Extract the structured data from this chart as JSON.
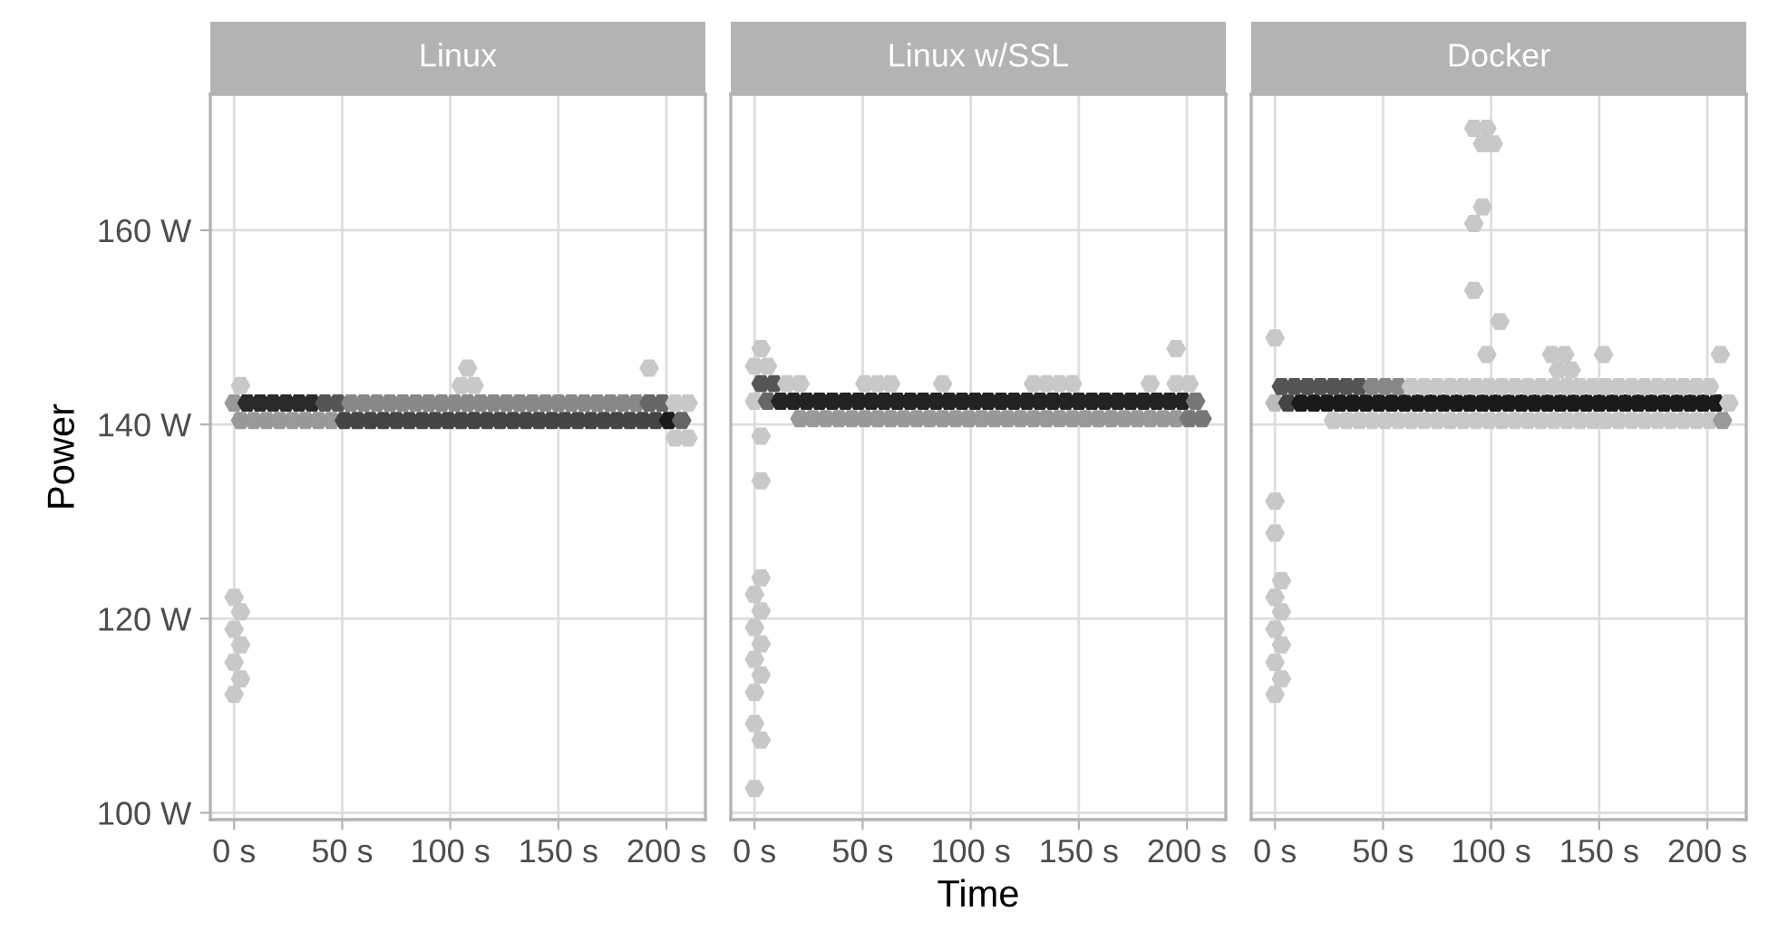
{
  "chart_data": [
    {
      "type": "scatter",
      "title": "Linux",
      "ylabel": "Power",
      "xlim": [
        -11,
        218
      ],
      "ylim": [
        99.3,
        174
      ],
      "grid": true,
      "xticks": [
        {
          "value": 0,
          "label": "0 s"
        },
        {
          "value": 50,
          "label": "50 s"
        },
        {
          "value": 100,
          "label": "100 s"
        },
        {
          "value": 150,
          "label": "150 s"
        },
        {
          "value": 200,
          "label": "200 s"
        }
      ],
      "yticks": [
        {
          "value": 100,
          "label": "100 W"
        },
        {
          "value": 120,
          "label": "120 W"
        },
        {
          "value": 140,
          "label": "140 W"
        },
        {
          "value": 160,
          "label": "160 W"
        }
      ],
      "series": [
        {
          "x": [
            0,
            6,
            12,
            18,
            24,
            30,
            36,
            42,
            48,
            54,
            60,
            66,
            72,
            78,
            84,
            90,
            96,
            102,
            108,
            114,
            120,
            126,
            132,
            138,
            144,
            150,
            156,
            162,
            168,
            174,
            180,
            186,
            192,
            198,
            204,
            210
          ],
          "values": [
            142.2,
            142.2,
            142.2,
            142.2,
            142.2,
            142.2,
            142.2,
            142.2,
            142.2,
            142.2,
            142.2,
            142.2,
            142.2,
            142.2,
            142.2,
            142.2,
            142.2,
            142.2,
            142.2,
            142.2,
            142.2,
            142.2,
            142.2,
            142.2,
            142.2,
            142.2,
            142.2,
            142.2,
            142.2,
            142.2,
            142.2,
            142.2,
            142.2,
            142.2,
            142.2,
            142.2
          ],
          "colors": [
            "#999999",
            "#2a2a2a",
            "#2a2a2a",
            "#2a2a2a",
            "#2a2a2a",
            "#2a2a2a",
            "#2a2a2a",
            "#555555",
            "#555555",
            "#888888",
            "#888888",
            "#888888",
            "#888888",
            "#888888",
            "#888888",
            "#888888",
            "#888888",
            "#888888",
            "#888888",
            "#888888",
            "#888888",
            "#888888",
            "#888888",
            "#888888",
            "#888888",
            "#888888",
            "#888888",
            "#888888",
            "#888888",
            "#888888",
            "#888888",
            "#888888",
            "#666666",
            "#666666",
            "#c8c8c8",
            "#c8c8c8"
          ]
        },
        {
          "x": [
            3,
            9,
            15,
            21,
            27,
            33,
            39,
            45,
            51,
            57,
            63,
            69,
            75,
            81,
            87,
            93,
            99,
            105,
            111,
            117,
            123,
            129,
            135,
            141,
            147,
            153,
            159,
            165,
            171,
            177,
            183,
            189,
            195,
            201,
            207
          ],
          "values": [
            140.4,
            140.4,
            140.4,
            140.4,
            140.4,
            140.4,
            140.4,
            140.4,
            140.4,
            140.4,
            140.4,
            140.4,
            140.4,
            140.4,
            140.4,
            140.4,
            140.4,
            140.4,
            140.4,
            140.4,
            140.4,
            140.4,
            140.4,
            140.4,
            140.4,
            140.4,
            140.4,
            140.4,
            140.4,
            140.4,
            140.4,
            140.4,
            140.4,
            140.4,
            140.4
          ],
          "colors": [
            "#999999",
            "#999999",
            "#999999",
            "#999999",
            "#999999",
            "#999999",
            "#999999",
            "#999999",
            "#444444",
            "#444444",
            "#444444",
            "#444444",
            "#444444",
            "#444444",
            "#444444",
            "#444444",
            "#444444",
            "#444444",
            "#444444",
            "#444444",
            "#444444",
            "#444444",
            "#444444",
            "#444444",
            "#444444",
            "#444444",
            "#444444",
            "#444444",
            "#444444",
            "#444444",
            "#444444",
            "#444444",
            "#444444",
            "#1a1a1a",
            "#666666"
          ]
        },
        {
          "x": [
            204,
            210,
            3,
            105,
            111,
            108,
            192,
            0,
            3,
            0,
            3,
            0,
            3,
            0
          ],
          "values": [
            138.6,
            138.6,
            144.0,
            144.0,
            144.0,
            145.8,
            145.8,
            122.2,
            120.7,
            118.9,
            117.3,
            115.5,
            113.8,
            112.2
          ],
          "colors": [
            "#c8c8c8",
            "#c8c8c8",
            "#c8c8c8",
            "#c8c8c8",
            "#c8c8c8",
            "#c8c8c8",
            "#c8c8c8",
            "#c8c8c8",
            "#c8c8c8",
            "#c8c8c8",
            "#c8c8c8",
            "#c8c8c8",
            "#c8c8c8",
            "#c8c8c8"
          ]
        }
      ]
    },
    {
      "type": "scatter",
      "title": "Linux w/SSL",
      "xlabel": "Time",
      "xlim": [
        -11,
        218
      ],
      "ylim": [
        99.3,
        174
      ],
      "grid": true,
      "tick_labels": "x",
      "xticks": [
        {
          "value": 0,
          "label": "0 s"
        },
        {
          "value": 50,
          "label": "50 s"
        },
        {
          "value": 100,
          "label": "100 s"
        },
        {
          "value": 150,
          "label": "150 s"
        },
        {
          "value": 200,
          "label": "200 s"
        }
      ],
      "yticks": [
        {
          "value": 100,
          "label": null
        },
        {
          "value": 120,
          "label": null
        },
        {
          "value": 140,
          "label": null
        },
        {
          "value": 160,
          "label": null
        }
      ],
      "series": [
        {
          "x": [
            0,
            6,
            12,
            18,
            24,
            30,
            36,
            42,
            48,
            54,
            60,
            66,
            72,
            78,
            84,
            90,
            96,
            102,
            108,
            114,
            120,
            126,
            132,
            138,
            144,
            150,
            156,
            162,
            168,
            174,
            180,
            186,
            192,
            198,
            204
          ],
          "values": [
            142.4,
            142.4,
            142.4,
            142.4,
            142.4,
            142.4,
            142.4,
            142.4,
            142.4,
            142.4,
            142.4,
            142.4,
            142.4,
            142.4,
            142.4,
            142.4,
            142.4,
            142.4,
            142.4,
            142.4,
            142.4,
            142.4,
            142.4,
            142.4,
            142.4,
            142.4,
            142.4,
            142.4,
            142.4,
            142.4,
            142.4,
            142.4,
            142.4,
            142.4,
            142.4
          ],
          "colors": [
            "#c8c8c8",
            "#666666",
            "#222222",
            "#222222",
            "#222222",
            "#222222",
            "#222222",
            "#222222",
            "#222222",
            "#222222",
            "#222222",
            "#222222",
            "#222222",
            "#222222",
            "#222222",
            "#222222",
            "#222222",
            "#222222",
            "#222222",
            "#222222",
            "#222222",
            "#222222",
            "#222222",
            "#222222",
            "#222222",
            "#222222",
            "#222222",
            "#222222",
            "#222222",
            "#222222",
            "#222222",
            "#222222",
            "#222222",
            "#222222",
            "#777777"
          ]
        },
        {
          "x": [
            21,
            27,
            33,
            39,
            45,
            51,
            57,
            63,
            69,
            75,
            81,
            87,
            93,
            99,
            105,
            111,
            117,
            123,
            129,
            135,
            141,
            147,
            153,
            159,
            165,
            171,
            177,
            183,
            189,
            195,
            201,
            207
          ],
          "values": [
            140.6,
            140.6,
            140.6,
            140.6,
            140.6,
            140.6,
            140.6,
            140.6,
            140.6,
            140.6,
            140.6,
            140.6,
            140.6,
            140.6,
            140.6,
            140.6,
            140.6,
            140.6,
            140.6,
            140.6,
            140.6,
            140.6,
            140.6,
            140.6,
            140.6,
            140.6,
            140.6,
            140.6,
            140.6,
            140.6,
            140.6,
            140.6
          ],
          "colors": [
            "#999999",
            "#999999",
            "#999999",
            "#999999",
            "#999999",
            "#999999",
            "#999999",
            "#999999",
            "#999999",
            "#999999",
            "#999999",
            "#999999",
            "#999999",
            "#999999",
            "#999999",
            "#999999",
            "#999999",
            "#999999",
            "#999999",
            "#999999",
            "#999999",
            "#999999",
            "#999999",
            "#999999",
            "#999999",
            "#999999",
            "#999999",
            "#999999",
            "#999999",
            "#999999",
            "#777777",
            "#777777"
          ]
        },
        {
          "x": [
            3,
            9,
            15,
            21,
            51,
            57,
            63,
            87,
            129,
            135,
            141,
            147,
            183,
            195,
            201
          ],
          "values": [
            144.2,
            144.2,
            144.2,
            144.2,
            144.2,
            144.2,
            144.2,
            144.2,
            144.2,
            144.2,
            144.2,
            144.2,
            144.2,
            144.2,
            144.2
          ],
          "colors": [
            "#555555",
            "#555555",
            "#c8c8c8",
            "#c8c8c8",
            "#c8c8c8",
            "#c8c8c8",
            "#c8c8c8",
            "#c8c8c8",
            "#c8c8c8",
            "#c8c8c8",
            "#c8c8c8",
            "#c8c8c8",
            "#c8c8c8",
            "#c8c8c8",
            "#c8c8c8"
          ]
        },
        {
          "x": [
            3,
            0,
            6,
            3,
            195,
            3,
            3,
            0,
            3,
            0,
            3,
            0,
            3,
            0,
            0,
            3,
            0
          ],
          "values": [
            138.8,
            146.0,
            146.0,
            147.8,
            147.8,
            134.2,
            124.2,
            122.5,
            120.8,
            119.1,
            117.4,
            115.8,
            114.2,
            112.4,
            109.2,
            107.5,
            102.5
          ],
          "colors": [
            "#c8c8c8",
            "#c8c8c8",
            "#c8c8c8",
            "#c8c8c8",
            "#c8c8c8",
            "#c8c8c8",
            "#c8c8c8",
            "#c8c8c8",
            "#c8c8c8",
            "#c8c8c8",
            "#c8c8c8",
            "#c8c8c8",
            "#c8c8c8",
            "#c8c8c8",
            "#c8c8c8",
            "#c8c8c8",
            "#c8c8c8"
          ]
        }
      ]
    },
    {
      "type": "scatter",
      "title": "Docker",
      "xlim": [
        -11,
        218
      ],
      "ylim": [
        99.3,
        174
      ],
      "grid": true,
      "tick_labels": "x",
      "xticks": [
        {
          "value": 0,
          "label": "0 s"
        },
        {
          "value": 50,
          "label": "50 s"
        },
        {
          "value": 100,
          "label": "100 s"
        },
        {
          "value": 150,
          "label": "150 s"
        },
        {
          "value": 200,
          "label": "200 s"
        }
      ],
      "yticks": [
        {
          "value": 100,
          "label": null
        },
        {
          "value": 120,
          "label": null
        },
        {
          "value": 140,
          "label": null
        },
        {
          "value": 160,
          "label": null
        }
      ],
      "series": [
        {
          "x": [
            0,
            6,
            12,
            18,
            24,
            30,
            36,
            42,
            48,
            54,
            60,
            66,
            72,
            78,
            84,
            90,
            96,
            102,
            108,
            114,
            120,
            126,
            132,
            138,
            144,
            150,
            156,
            162,
            168,
            174,
            180,
            186,
            192,
            198,
            204,
            210
          ],
          "values": [
            142.2,
            142.2,
            142.2,
            142.2,
            142.2,
            142.2,
            142.2,
            142.2,
            142.2,
            142.2,
            142.2,
            142.2,
            142.2,
            142.2,
            142.2,
            142.2,
            142.2,
            142.2,
            142.2,
            142.2,
            142.2,
            142.2,
            142.2,
            142.2,
            142.2,
            142.2,
            142.2,
            142.2,
            142.2,
            142.2,
            142.2,
            142.2,
            142.2,
            142.2,
            142.2,
            142.2
          ],
          "colors": [
            "#bbbbbb",
            "#444444",
            "#1a1a1a",
            "#1a1a1a",
            "#1a1a1a",
            "#1a1a1a",
            "#1a1a1a",
            "#1a1a1a",
            "#1a1a1a",
            "#1a1a1a",
            "#1a1a1a",
            "#1a1a1a",
            "#1a1a1a",
            "#1a1a1a",
            "#1a1a1a",
            "#1a1a1a",
            "#1a1a1a",
            "#1a1a1a",
            "#1a1a1a",
            "#1a1a1a",
            "#1a1a1a",
            "#1a1a1a",
            "#1a1a1a",
            "#1a1a1a",
            "#1a1a1a",
            "#1a1a1a",
            "#1a1a1a",
            "#1a1a1a",
            "#1a1a1a",
            "#1a1a1a",
            "#1a1a1a",
            "#1a1a1a",
            "#1a1a1a",
            "#1a1a1a",
            "#1a1a1a",
            "#c8c8c8"
          ]
        },
        {
          "x": [
            3,
            9,
            15,
            21,
            27,
            33,
            39,
            45,
            51,
            57,
            63,
            69,
            75,
            81,
            87,
            93,
            99,
            105,
            111,
            117,
            123,
            129,
            135,
            141,
            147,
            153,
            159,
            165,
            171,
            177,
            183,
            189,
            195,
            201
          ],
          "values": [
            143.9,
            143.9,
            143.9,
            143.9,
            143.9,
            143.9,
            143.9,
            143.9,
            143.9,
            143.9,
            143.9,
            143.9,
            143.9,
            143.9,
            143.9,
            143.9,
            143.9,
            143.9,
            143.9,
            143.9,
            143.9,
            143.9,
            143.9,
            143.9,
            143.9,
            143.9,
            143.9,
            143.9,
            143.9,
            143.9,
            143.9,
            143.9,
            143.9,
            143.9
          ],
          "colors": [
            "#555555",
            "#555555",
            "#555555",
            "#555555",
            "#555555",
            "#555555",
            "#555555",
            "#888888",
            "#888888",
            "#888888",
            "#c8c8c8",
            "#c8c8c8",
            "#c8c8c8",
            "#c8c8c8",
            "#c8c8c8",
            "#c8c8c8",
            "#c8c8c8",
            "#c8c8c8",
            "#c8c8c8",
            "#c8c8c8",
            "#c8c8c8",
            "#c8c8c8",
            "#c8c8c8",
            "#c8c8c8",
            "#c8c8c8",
            "#c8c8c8",
            "#c8c8c8",
            "#c8c8c8",
            "#c8c8c8",
            "#c8c8c8",
            "#c8c8c8",
            "#c8c8c8",
            "#c8c8c8",
            "#c8c8c8"
          ]
        },
        {
          "x": [
            27,
            33,
            39,
            45,
            51,
            57,
            63,
            69,
            75,
            81,
            87,
            93,
            99,
            105,
            111,
            117,
            123,
            129,
            135,
            141,
            147,
            153,
            159,
            165,
            171,
            177,
            183,
            189,
            195,
            201,
            207
          ],
          "values": [
            140.4,
            140.4,
            140.4,
            140.4,
            140.4,
            140.4,
            140.4,
            140.4,
            140.4,
            140.4,
            140.4,
            140.4,
            140.4,
            140.4,
            140.4,
            140.4,
            140.4,
            140.4,
            140.4,
            140.4,
            140.4,
            140.4,
            140.4,
            140.4,
            140.4,
            140.4,
            140.4,
            140.4,
            140.4,
            140.4,
            140.4
          ],
          "colors": [
            "#c8c8c8",
            "#c8c8c8",
            "#c8c8c8",
            "#c8c8c8",
            "#c8c8c8",
            "#c8c8c8",
            "#c8c8c8",
            "#c8c8c8",
            "#c8c8c8",
            "#c8c8c8",
            "#c8c8c8",
            "#c8c8c8",
            "#c8c8c8",
            "#c8c8c8",
            "#c8c8c8",
            "#c8c8c8",
            "#c8c8c8",
            "#c8c8c8",
            "#c8c8c8",
            "#c8c8c8",
            "#c8c8c8",
            "#c8c8c8",
            "#c8c8c8",
            "#c8c8c8",
            "#c8c8c8",
            "#c8c8c8",
            "#c8c8c8",
            "#c8c8c8",
            "#c8c8c8",
            "#c8c8c8",
            "#999999"
          ]
        },
        {
          "x": [
            92,
            98,
            96,
            101,
            96,
            92,
            92,
            104,
            98,
            128,
            134,
            131,
            137,
            152,
            206,
            0,
            0,
            0,
            3,
            0,
            3,
            0,
            3,
            0,
            3,
            0
          ],
          "values": [
            170.5,
            170.5,
            168.9,
            168.9,
            162.4,
            160.7,
            153.8,
            150.6,
            147.2,
            147.2,
            147.2,
            145.6,
            145.6,
            147.2,
            147.2,
            148.9,
            132.1,
            128.8,
            123.9,
            122.2,
            120.7,
            118.9,
            117.3,
            115.5,
            113.8,
            112.2
          ],
          "colors": [
            "#c8c8c8",
            "#c8c8c8",
            "#c8c8c8",
            "#c8c8c8",
            "#c8c8c8",
            "#c8c8c8",
            "#c8c8c8",
            "#c8c8c8",
            "#c8c8c8",
            "#c8c8c8",
            "#c8c8c8",
            "#c8c8c8",
            "#c8c8c8",
            "#c8c8c8",
            "#c8c8c8",
            "#c8c8c8",
            "#c8c8c8",
            "#c8c8c8",
            "#c8c8c8",
            "#c8c8c8",
            "#c8c8c8",
            "#c8c8c8",
            "#c8c8c8",
            "#c8c8c8",
            "#c8c8c8",
            "#c8c8c8"
          ]
        }
      ]
    }
  ]
}
